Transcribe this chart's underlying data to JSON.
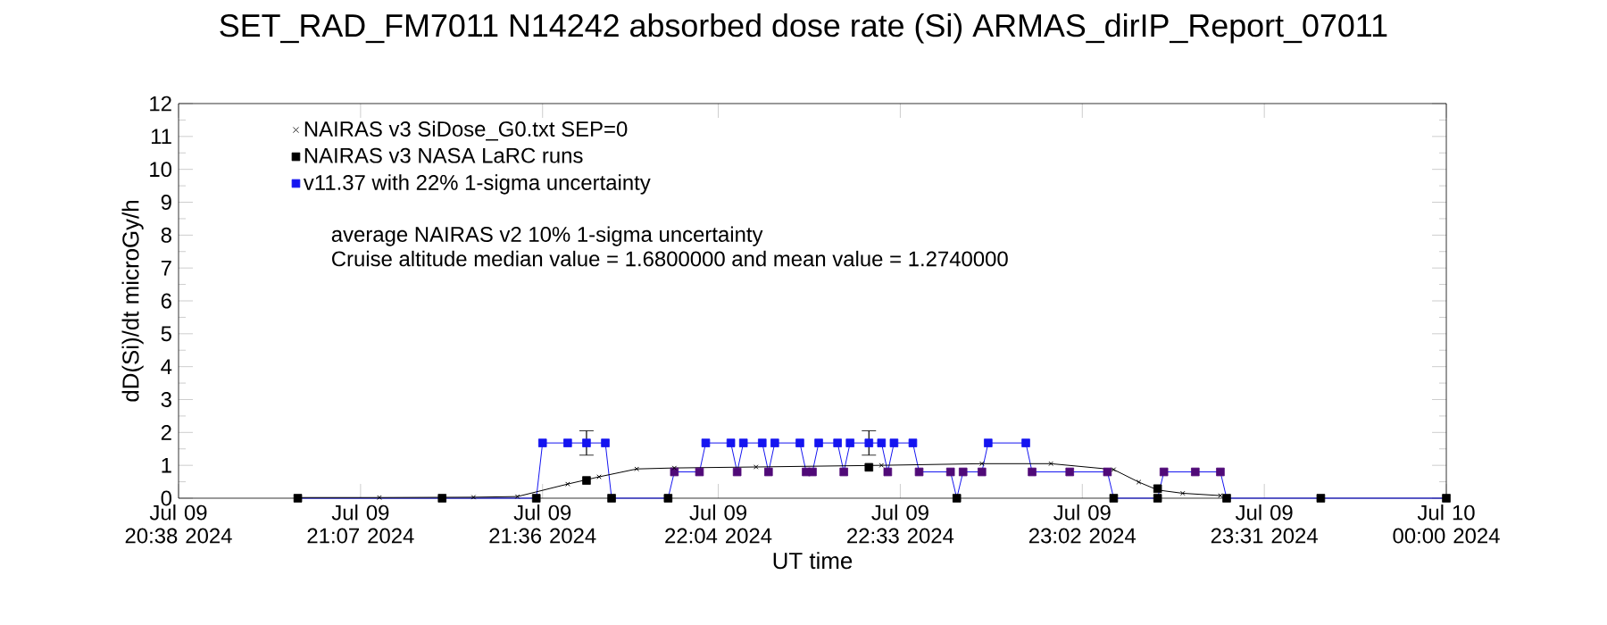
{
  "chart_data": {
    "type": "line",
    "title": "SET_RAD_FM7011  N14242 absorbed dose rate (Si) ARMAS_dirIP_Report_07011",
    "xlabel": "UT time",
    "ylabel": "dD(Si)/dt microGy/h",
    "xlim": [
      "2024-07-09T20:38",
      "2024-07-10T00:00"
    ],
    "xticks": [
      {
        "value": "2024-07-09T20:38",
        "label": "Jul 09 20:38 2024"
      },
      {
        "value": "2024-07-09T21:07",
        "label": "Jul 09 21:07 2024"
      },
      {
        "value": "2024-07-09T21:36",
        "label": "Jul 09 21:36 2024"
      },
      {
        "value": "2024-07-09T22:04",
        "label": "Jul 09 22:04 2024"
      },
      {
        "value": "2024-07-09T22:33",
        "label": "Jul 09 22:33 2024"
      },
      {
        "value": "2024-07-09T23:02",
        "label": "Jul 09 23:02 2024"
      },
      {
        "value": "2024-07-09T23:31",
        "label": "Jul 09 23:31 2024"
      },
      {
        "value": "2024-07-10T00:00",
        "label": "Jul 10 00:00 2024"
      }
    ],
    "ylim": [
      0,
      12
    ],
    "yticks": [
      0,
      1,
      2,
      3,
      4,
      5,
      6,
      7,
      8,
      9,
      10,
      11,
      12
    ],
    "legend": "top left",
    "grid": false,
    "annotations": [
      "average NAIRAS v2 10% 1-sigma uncertainty",
      "Cruise altitude median value = 1.6800000 and mean value = 1.2740000"
    ],
    "series": [
      {
        "name": "NAIRAS v3 SiDose_G0.txt SEP=0",
        "marker": "cross",
        "color": "#000000",
        "x": [
          "2024-07-09T20:57",
          "2024-07-09T21:10",
          "2024-07-09T21:25",
          "2024-07-09T21:32",
          "2024-07-09T21:40",
          "2024-07-09T21:45",
          "2024-07-09T21:51",
          "2024-07-09T21:57",
          "2024-07-09T22:10",
          "2024-07-09T22:30",
          "2024-07-09T22:46",
          "2024-07-09T22:57",
          "2024-07-09T23:07",
          "2024-07-09T23:11",
          "2024-07-09T23:14",
          "2024-07-09T23:18",
          "2024-07-09T23:24"
        ],
        "values": [
          0.02,
          0.02,
          0.03,
          0.05,
          0.43,
          0.65,
          0.89,
          0.92,
          0.95,
          1.0,
          1.05,
          1.05,
          0.87,
          0.49,
          0.25,
          0.15,
          0.08
        ]
      },
      {
        "name": "NAIRAS v3 NASA LaRC runs",
        "type": "scatter",
        "marker": "square",
        "color": "#000000",
        "x": [
          "2024-07-09T21:43",
          "2024-07-09T22:28",
          "2024-07-09T23:14"
        ],
        "values": [
          0.54,
          0.94,
          0.29
        ]
      },
      {
        "name": "v11.37 with 22% 1-sigma uncertainty",
        "type": "line",
        "marker": "square",
        "color": "#1414f0",
        "x": [
          "2024-07-09T20:57",
          "2024-07-09T21:20",
          "2024-07-09T21:35",
          "2024-07-09T21:36",
          "2024-07-09T21:40",
          "2024-07-09T21:43",
          "2024-07-09T21:46",
          "2024-07-09T21:47",
          "2024-07-09T21:56",
          "2024-07-09T21:57",
          "2024-07-09T22:01",
          "2024-07-09T22:02",
          "2024-07-09T22:06",
          "2024-07-09T22:07",
          "2024-07-09T22:08",
          "2024-07-09T22:11",
          "2024-07-09T22:12",
          "2024-07-09T22:13",
          "2024-07-09T22:17",
          "2024-07-09T22:18",
          "2024-07-09T22:19",
          "2024-07-09T22:20",
          "2024-07-09T22:23",
          "2024-07-09T22:24",
          "2024-07-09T22:25",
          "2024-07-09T22:28",
          "2024-07-09T22:30",
          "2024-07-09T22:31",
          "2024-07-09T22:32",
          "2024-07-09T22:35",
          "2024-07-09T22:36",
          "2024-07-09T22:41",
          "2024-07-09T22:42",
          "2024-07-09T22:43",
          "2024-07-09T22:46",
          "2024-07-09T22:47",
          "2024-07-09T22:53",
          "2024-07-09T22:54",
          "2024-07-09T23:00",
          "2024-07-09T23:06",
          "2024-07-09T23:07",
          "2024-07-09T23:14",
          "2024-07-09T23:15",
          "2024-07-09T23:20",
          "2024-07-09T23:24",
          "2024-07-09T23:25",
          "2024-07-09T23:40",
          "2024-07-10T00:00"
        ],
        "values": [
          0,
          0,
          0,
          1.68,
          1.68,
          1.68,
          1.68,
          0,
          0,
          0.8,
          0.8,
          1.68,
          1.68,
          0.8,
          1.68,
          1.68,
          0.8,
          1.68,
          1.68,
          0.8,
          0.8,
          1.68,
          1.68,
          0.8,
          1.68,
          1.68,
          1.68,
          0.8,
          1.68,
          1.68,
          0.8,
          0.8,
          0,
          0.8,
          0.8,
          1.68,
          1.68,
          0.8,
          0.8,
          0.8,
          0,
          0,
          0.8,
          0.8,
          0.8,
          0,
          0,
          0
        ],
        "errors": [
          null,
          null,
          null,
          null,
          null,
          0.37,
          null,
          null,
          null,
          null,
          null,
          null,
          null,
          null,
          null,
          null,
          null,
          null,
          null,
          null,
          null,
          null,
          null,
          null,
          null,
          0.37,
          null,
          null,
          null,
          null,
          null,
          null,
          null,
          null,
          null,
          null,
          null,
          null,
          null,
          null,
          null,
          null,
          null,
          null,
          null,
          null,
          null,
          null
        ],
        "colors": [
          "#000000",
          "#000000",
          "#000000",
          "#1414f0",
          "#1414f0",
          "#1414f0",
          "#1414f0",
          "#000000",
          "#000000",
          "#500a78",
          "#500a78",
          "#1414f0",
          "#1414f0",
          "#500a78",
          "#1414f0",
          "#1414f0",
          "#500a78",
          "#1414f0",
          "#1414f0",
          "#500a78",
          "#500a78",
          "#1414f0",
          "#1414f0",
          "#500a78",
          "#1414f0",
          "#1414f0",
          "#1414f0",
          "#500a78",
          "#1414f0",
          "#1414f0",
          "#500a78",
          "#500a78",
          "#000000",
          "#500a78",
          "#500a78",
          "#1414f0",
          "#1414f0",
          "#500a78",
          "#500a78",
          "#500a78",
          "#000000",
          "#000000",
          "#500a78",
          "#500a78",
          "#500a78",
          "#000000",
          "#000000",
          "#000000"
        ]
      }
    ]
  }
}
